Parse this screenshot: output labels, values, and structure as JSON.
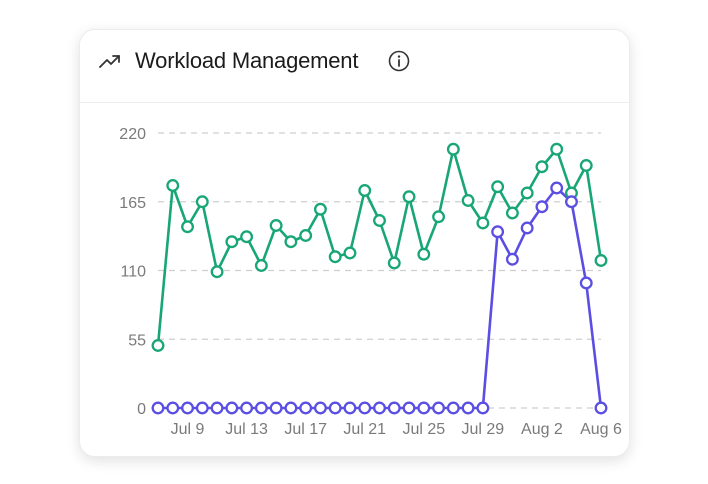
{
  "card": {
    "title": "Workload Management",
    "title_icon": "trending-up-icon",
    "info_icon": "info-icon"
  },
  "chart_data": {
    "type": "line",
    "title": "Workload Management",
    "xlabel": "",
    "ylabel": "",
    "ylim": [
      0,
      220
    ],
    "yticks": [
      0,
      55,
      110,
      165,
      220
    ],
    "grid": true,
    "legend": "none",
    "x": [
      "Jul 7",
      "Jul 8",
      "Jul 9",
      "Jul 10",
      "Jul 11",
      "Jul 12",
      "Jul 13",
      "Jul 14",
      "Jul 15",
      "Jul 16",
      "Jul 17",
      "Jul 18",
      "Jul 19",
      "Jul 20",
      "Jul 21",
      "Jul 22",
      "Jul 23",
      "Jul 24",
      "Jul 25",
      "Jul 26",
      "Jul 27",
      "Jul 28",
      "Jul 29",
      "Jul 30",
      "Jul 31",
      "Aug 1",
      "Aug 2",
      "Aug 3",
      "Aug 4",
      "Aug 5",
      "Aug 6"
    ],
    "xtick_labels": [
      "Jul 9",
      "Jul 13",
      "Jul 17",
      "Jul 21",
      "Jul 25",
      "Jul 29",
      "Aug 2",
      "Aug 6"
    ],
    "series": [
      {
        "color": "#18a676",
        "values": [
          50,
          178,
          145,
          165,
          109,
          133,
          137,
          114,
          146,
          133,
          138,
          159,
          121,
          124,
          174,
          150,
          116,
          169,
          123,
          153,
          207,
          166,
          148,
          177,
          156,
          172,
          193,
          207,
          172,
          194,
          118
        ]
      },
      {
        "color": "#5b4ee3",
        "values": [
          0,
          0,
          0,
          0,
          0,
          0,
          0,
          0,
          0,
          0,
          0,
          0,
          0,
          0,
          0,
          0,
          0,
          0,
          0,
          0,
          0,
          0,
          0,
          141,
          119,
          144,
          161,
          176,
          165,
          100,
          0
        ]
      }
    ]
  }
}
